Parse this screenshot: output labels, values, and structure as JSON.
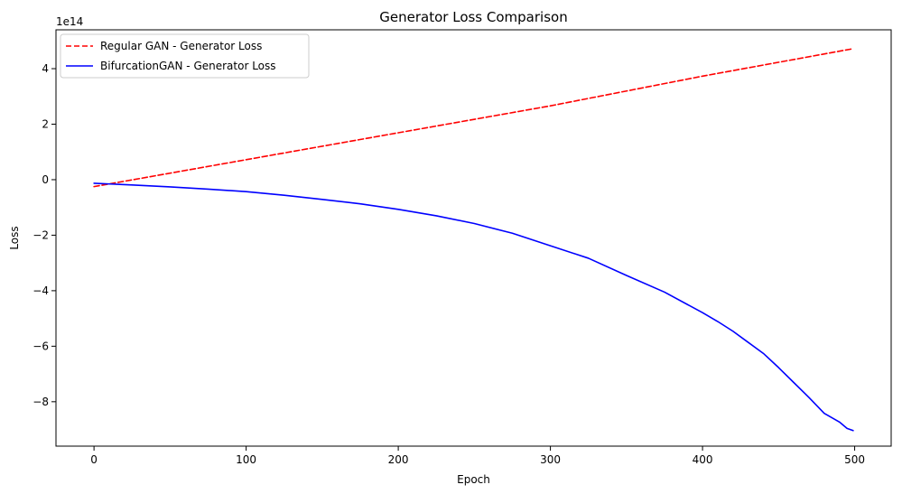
{
  "chart_data": {
    "type": "line",
    "title": "Generator Loss Comparison",
    "xlabel": "Epoch",
    "ylabel": "Loss",
    "offset_label": "1e14",
    "xlim": [
      -25,
      524
    ],
    "ylim": [
      -9.6,
      5.4
    ],
    "y_scale_factor": 100000000000000,
    "grid": false,
    "legend_position": "top-left",
    "x_ticks": [
      0,
      100,
      200,
      300,
      400,
      500
    ],
    "x_tick_labels": [
      "0",
      "100",
      "200",
      "300",
      "400",
      "500"
    ],
    "y_ticks": [
      4,
      2,
      0,
      -2,
      -4,
      -6,
      -8
    ],
    "y_tick_labels": [
      "4",
      "2",
      "0",
      "−2",
      "−4",
      "−6",
      "−8"
    ],
    "series": [
      {
        "name": "Regular GAN - Generator Loss",
        "color": "#ff0000",
        "style": "dashed",
        "x": [
          0,
          100,
          200,
          300,
          400,
          499
        ],
        "y": [
          -0.25,
          0.72,
          1.69,
          2.66,
          3.73,
          4.72
        ]
      },
      {
        "name": "BifurcationGAN - Generator Loss",
        "color": "#0000ff",
        "style": "solid",
        "x": [
          0,
          25,
          50,
          75,
          100,
          125,
          150,
          175,
          200,
          225,
          250,
          275,
          300,
          325,
          350,
          375,
          400,
          410,
          420,
          430,
          440,
          450,
          460,
          470,
          480,
          490,
          495,
          499
        ],
        "y": [
          -0.13,
          -0.19,
          -0.26,
          -0.34,
          -0.43,
          -0.56,
          -0.71,
          -0.87,
          -1.07,
          -1.3,
          -1.58,
          -1.93,
          -2.38,
          -2.83,
          -3.45,
          -4.05,
          -4.79,
          -5.11,
          -5.46,
          -5.86,
          -6.26,
          -6.77,
          -7.31,
          -7.85,
          -8.42,
          -8.73,
          -8.96,
          -9.04
        ]
      }
    ]
  }
}
